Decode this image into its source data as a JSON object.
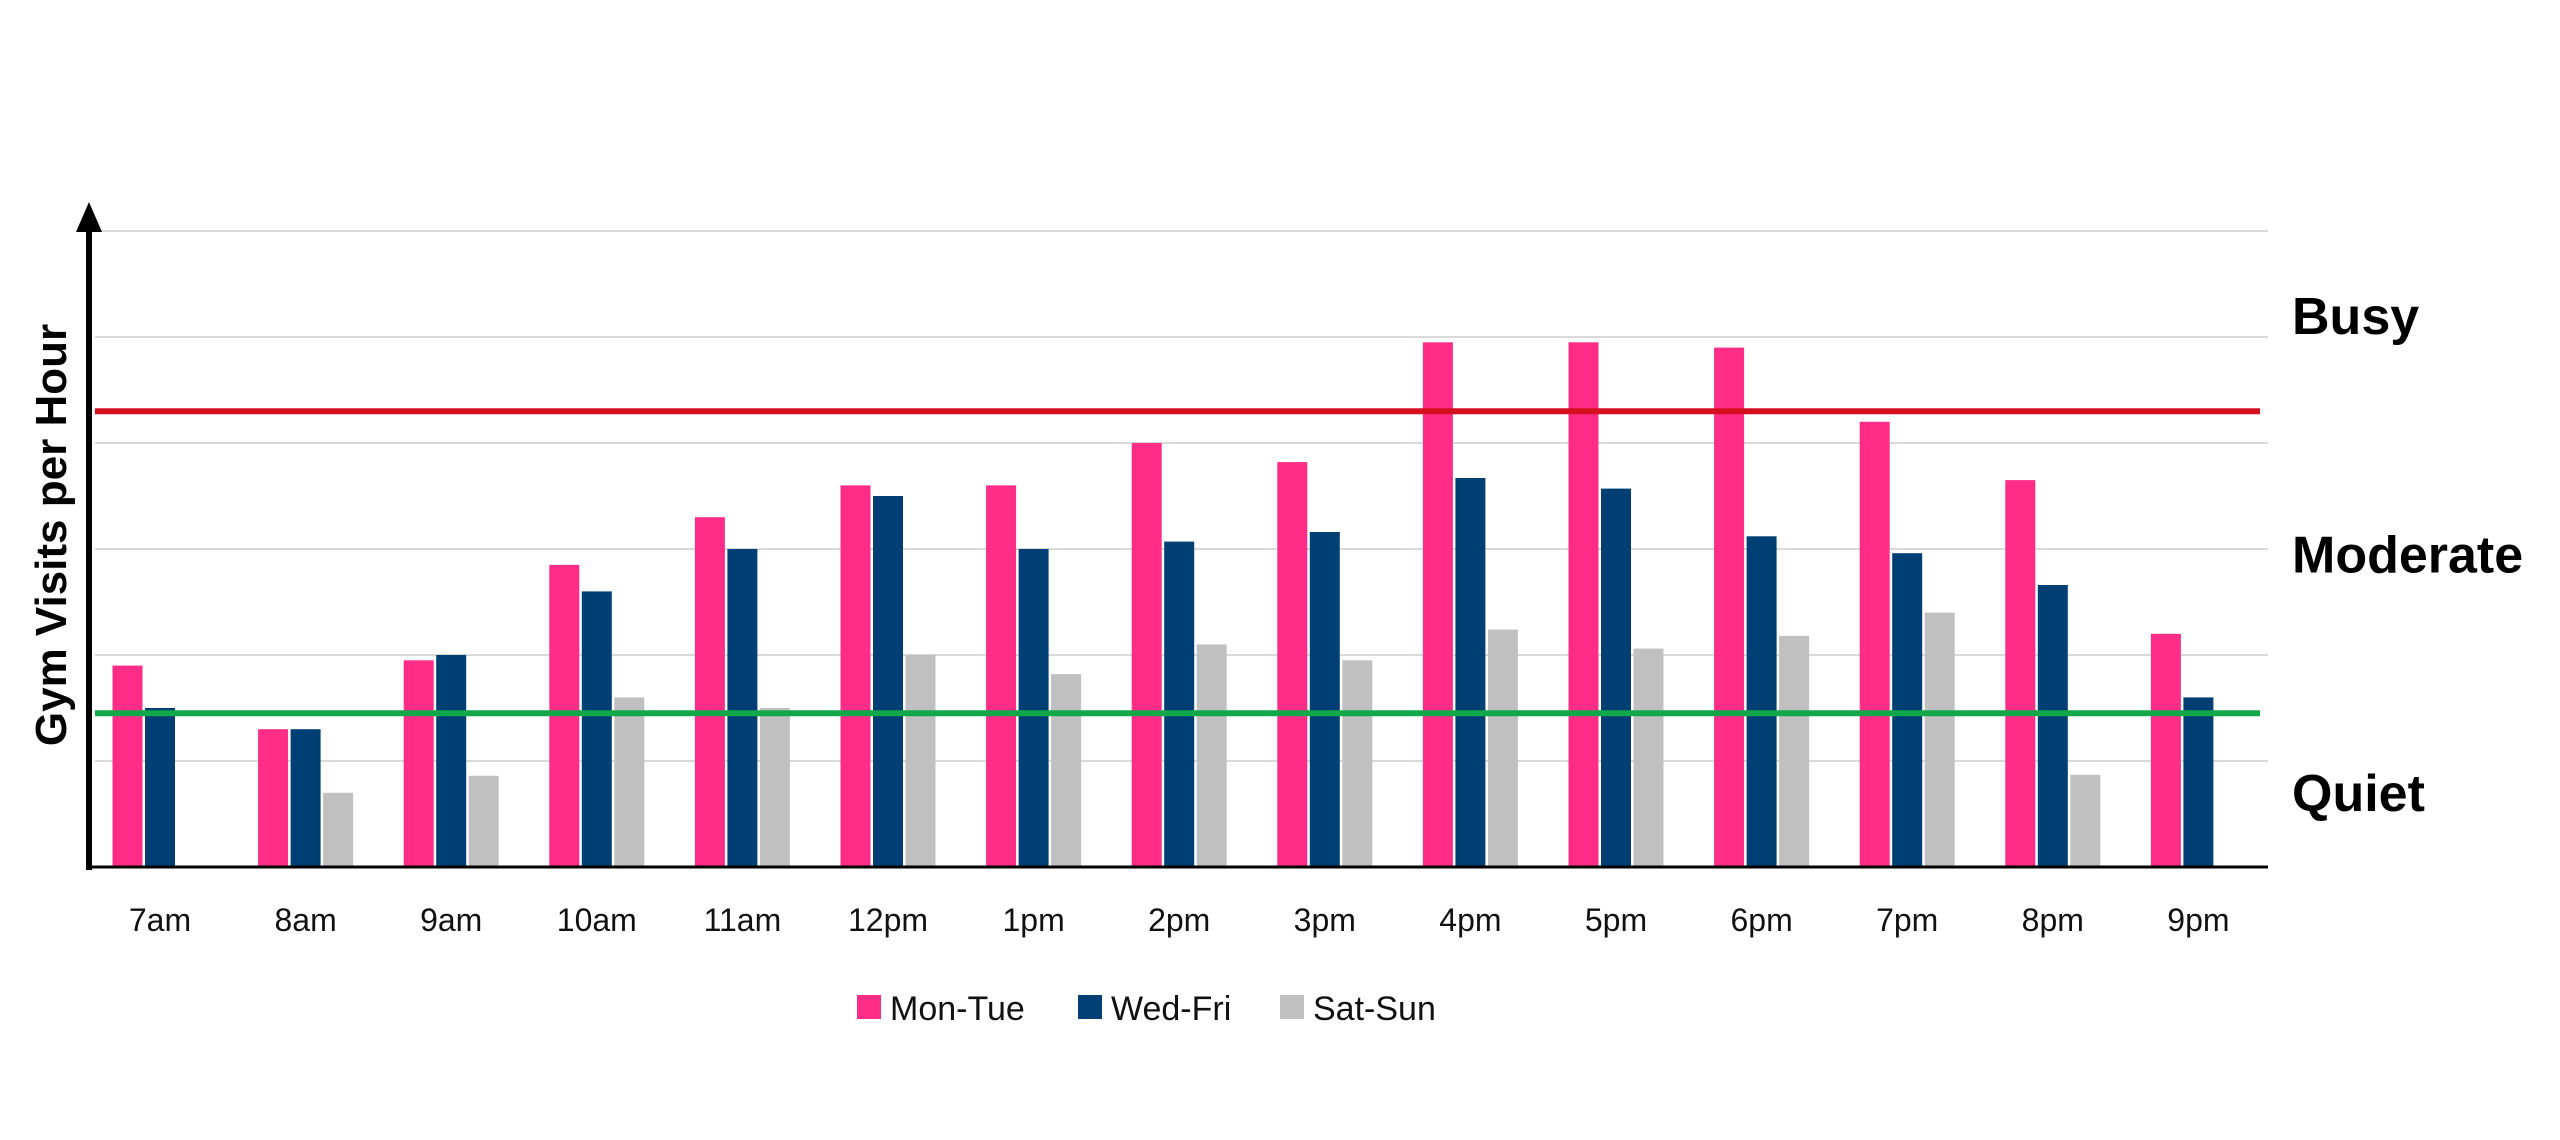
{
  "chart_data": {
    "type": "bar",
    "ylabel": "Gym Visits per Hour",
    "xlabel": "",
    "title": "",
    "categories": [
      "7am",
      "8am",
      "9am",
      "10am",
      "11am",
      "12pm",
      "1pm",
      "2pm",
      "3pm",
      "4pm",
      "5pm",
      "6pm",
      "7pm",
      "8pm",
      "9pm"
    ],
    "series": [
      {
        "name": "Mon-Tue",
        "color": "#ff2d87",
        "values": [
          1.9,
          1.3,
          1.95,
          2.85,
          3.3,
          3.6,
          3.6,
          4.0,
          3.82,
          4.95,
          4.95,
          4.9,
          4.2,
          3.65,
          2.2
        ]
      },
      {
        "name": "Wed-Fri",
        "color": "#003f74",
        "values": [
          1.5,
          1.3,
          2.0,
          2.6,
          3.0,
          3.5,
          3.0,
          3.07,
          3.16,
          3.67,
          3.57,
          3.12,
          2.96,
          2.66,
          1.6
        ]
      },
      {
        "name": "Sat-Sun",
        "color": "#c0c0c0",
        "values": [
          0,
          0.7,
          0.86,
          1.6,
          1.5,
          2.0,
          1.82,
          2.1,
          1.95,
          2.24,
          2.06,
          2.18,
          2.4,
          0.87,
          0
        ]
      }
    ],
    "ylim": [
      0,
      6
    ],
    "grid": true,
    "legend_position": "bottom",
    "thresholds": [
      {
        "name": "busy-threshold",
        "value": 4.3,
        "color": "#d40f1f"
      },
      {
        "name": "quiet-threshold",
        "value": 1.45,
        "color": "#12a84a"
      }
    ],
    "bands": [
      {
        "label": "Busy",
        "value": 5.2
      },
      {
        "label": "Moderate",
        "value": 2.95
      },
      {
        "label": "Quiet",
        "value": 0.7
      }
    ]
  }
}
